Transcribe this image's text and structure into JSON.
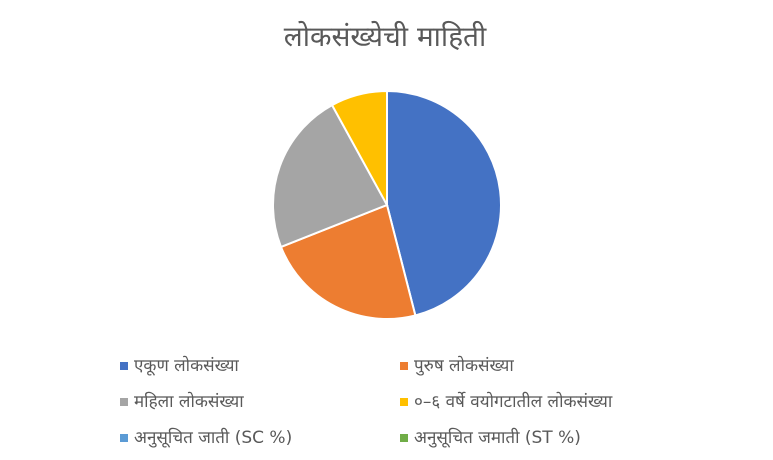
{
  "chart_data": {
    "type": "pie",
    "title": "लोकसंख्येची माहिती",
    "categories": [
      "एकूण लोकसंख्या",
      "पुरुष लोकसंख्या",
      "महिला लोकसंख्या",
      "०–६  वर्षे वयोगटातील लोकसंख्या",
      "अनुसूचित जाती    (SC %)",
      "अनुसूचित जमाती    (ST %)"
    ],
    "values": [
      46,
      23,
      23,
      8,
      0,
      0
    ],
    "colors": [
      "#4472c4",
      "#ed7d31",
      "#a5a5a5",
      "#ffc000",
      "#5b9bd5",
      "#70ad47"
    ]
  }
}
